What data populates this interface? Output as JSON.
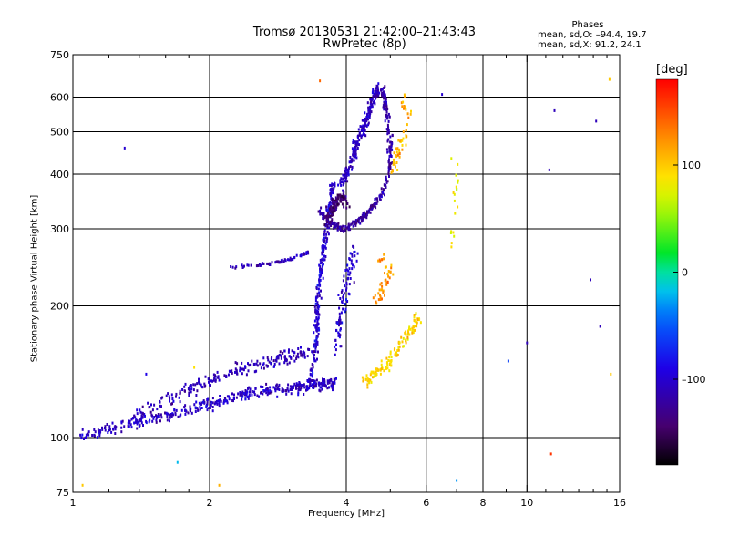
{
  "chart_data": {
    "type": "scatter",
    "title": "Tromsø 20130531 21:42:00–21:43:43",
    "subtitle": "RwPretec (8p)",
    "xlabel": "Frequency [MHz]",
    "ylabel": "Stationary phase Virtual Height [km]",
    "x_scale": "log",
    "y_scale": "log",
    "xlim": [
      1,
      16
    ],
    "ylim": [
      75,
      750
    ],
    "x_ticks": [
      1,
      2,
      4,
      6,
      8,
      10,
      16
    ],
    "x_tick_labels": [
      "1",
      "2",
      "4",
      "6",
      "8",
      "10",
      "16"
    ],
    "x_minor_ticks": [
      1.2,
      1.4,
      1.6,
      1.8,
      3,
      5,
      7,
      9,
      11,
      12,
      13,
      14,
      15
    ],
    "y_ticks": [
      75,
      100,
      200,
      300,
      400,
      500,
      600,
      750
    ],
    "y_tick_labels": [
      "75",
      "100",
      "200",
      "300",
      "400",
      "500",
      "600",
      "750"
    ],
    "grid": true,
    "grid_x": [
      2,
      4,
      6,
      8,
      10
    ],
    "grid_y": [
      100,
      200,
      300,
      400,
      500,
      600
    ],
    "stats_title": "Phases",
    "stats_line1": "mean, sd,O: –94.4, 19.7",
    "stats_line2": "mean, sd,X:  91.2, 24.1",
    "colorbar": {
      "unit": "[deg]",
      "range": [
        -180,
        180
      ],
      "ticks": [
        100,
        0,
        -100
      ],
      "tick_labels": [
        "100",
        "0",
        "–100"
      ]
    },
    "traces": [
      {
        "phase": -105,
        "pts": [
          [
            1.05,
            102
          ],
          [
            1.15,
            104
          ],
          [
            1.25,
            106
          ],
          [
            1.35,
            108
          ],
          [
            1.45,
            110
          ],
          [
            1.6,
            112
          ],
          [
            1.75,
            115
          ],
          [
            1.9,
            118
          ],
          [
            2.05,
            120
          ],
          [
            2.2,
            123
          ],
          [
            2.4,
            126
          ],
          [
            2.6,
            128
          ],
          [
            2.8,
            129
          ],
          [
            3.0,
            130
          ],
          [
            3.2,
            131
          ],
          [
            3.4,
            132
          ],
          [
            3.6,
            133
          ],
          [
            3.8,
            133
          ]
        ],
        "jitter": 0.045,
        "n": 420
      },
      {
        "phase": -110,
        "pts": [
          [
            1.35,
            112
          ],
          [
            1.5,
            118
          ],
          [
            1.7,
            125
          ],
          [
            1.9,
            132
          ],
          [
            2.1,
            138
          ],
          [
            2.3,
            143
          ],
          [
            2.5,
            146
          ],
          [
            2.7,
            150
          ],
          [
            2.9,
            153
          ],
          [
            3.1,
            155
          ],
          [
            3.3,
            158
          ]
        ],
        "jitter": 0.05,
        "n": 220
      },
      {
        "phase": -100,
        "pts": [
          [
            3.3,
            130
          ],
          [
            3.4,
            150
          ],
          [
            3.45,
            175
          ],
          [
            3.45,
            200
          ],
          [
            3.5,
            230
          ],
          [
            3.55,
            260
          ],
          [
            3.6,
            290
          ],
          [
            3.65,
            320
          ],
          [
            3.7,
            350
          ],
          [
            3.75,
            380
          ]
        ],
        "jitter": 0.035,
        "n": 260
      },
      {
        "phase": -120,
        "pts": [
          [
            3.5,
            330
          ],
          [
            3.7,
            310
          ],
          [
            3.9,
            300
          ],
          [
            4.1,
            305
          ],
          [
            4.3,
            315
          ],
          [
            4.5,
            330
          ],
          [
            4.7,
            350
          ],
          [
            4.9,
            380
          ],
          [
            5.0,
            420
          ],
          [
            5.0,
            470
          ],
          [
            4.95,
            520
          ],
          [
            4.9,
            560
          ],
          [
            4.85,
            600
          ],
          [
            4.8,
            630
          ]
        ],
        "jitter": 0.03,
        "n": 300
      },
      {
        "phase": -105,
        "pts": [
          [
            3.9,
            380
          ],
          [
            4.0,
            400
          ],
          [
            4.1,
            430
          ],
          [
            4.2,
            460
          ],
          [
            4.3,
            490
          ],
          [
            4.4,
            520
          ],
          [
            4.5,
            560
          ],
          [
            4.6,
            600
          ],
          [
            4.7,
            630
          ]
        ],
        "jitter": 0.04,
        "n": 220
      },
      {
        "phase": -140,
        "pts": [
          [
            3.6,
            310
          ],
          [
            3.7,
            330
          ],
          [
            3.8,
            345
          ],
          [
            3.9,
            360
          ],
          [
            4.0,
            340
          ]
        ],
        "jitter": 0.05,
        "n": 110
      },
      {
        "phase": -110,
        "pts": [
          [
            2.2,
            245
          ],
          [
            2.5,
            248
          ],
          [
            2.8,
            252
          ],
          [
            3.0,
            256
          ],
          [
            3.2,
            262
          ],
          [
            3.3,
            266
          ]
        ],
        "jitter": 0.012,
        "n": 70
      },
      {
        "phase": -100,
        "pts": [
          [
            3.8,
            160
          ],
          [
            3.9,
            190
          ],
          [
            4.0,
            220
          ],
          [
            4.1,
            250
          ],
          [
            4.2,
            270
          ]
        ],
        "jitter": 0.06,
        "n": 90
      },
      {
        "phase": 95,
        "pts": [
          [
            4.4,
            135
          ],
          [
            4.6,
            140
          ],
          [
            4.8,
            145
          ],
          [
            5.0,
            150
          ],
          [
            5.2,
            160
          ],
          [
            5.4,
            170
          ],
          [
            5.6,
            180
          ],
          [
            5.8,
            190
          ]
        ],
        "jitter": 0.05,
        "n": 130
      },
      {
        "phase": 120,
        "pts": [
          [
            4.6,
            200
          ],
          [
            4.8,
            220
          ],
          [
            5.0,
            240
          ],
          [
            4.7,
            260
          ]
        ],
        "jitter": 0.06,
        "n": 45
      },
      {
        "phase": 110,
        "pts": [
          [
            5.0,
            400
          ],
          [
            5.2,
            450
          ],
          [
            5.4,
            500
          ],
          [
            5.5,
            550
          ],
          [
            5.3,
            600
          ]
        ],
        "jitter": 0.05,
        "n": 55
      },
      {
        "phase": 80,
        "pts": [
          [
            6.8,
            270
          ],
          [
            6.9,
            320
          ],
          [
            7.0,
            380
          ],
          [
            6.9,
            450
          ]
        ],
        "jitter": 0.05,
        "n": 18
      }
    ],
    "scatter_points": [
      {
        "x": 1.3,
        "y": 460,
        "phase": -100
      },
      {
        "x": 1.45,
        "y": 140,
        "phase": -90
      },
      {
        "x": 1.85,
        "y": 145,
        "phase": 90
      },
      {
        "x": 1.7,
        "y": 88,
        "phase": -20
      },
      {
        "x": 2.1,
        "y": 78,
        "phase": 110
      },
      {
        "x": 3.5,
        "y": 655,
        "phase": 140
      },
      {
        "x": 6.5,
        "y": 610,
        "phase": -100
      },
      {
        "x": 7.0,
        "y": 80,
        "phase": -30
      },
      {
        "x": 10.0,
        "y": 165,
        "phase": -110
      },
      {
        "x": 11.2,
        "y": 410,
        "phase": -110
      },
      {
        "x": 11.5,
        "y": 560,
        "phase": -110
      },
      {
        "x": 13.8,
        "y": 230,
        "phase": -110
      },
      {
        "x": 14.2,
        "y": 530,
        "phase": -110
      },
      {
        "x": 14.5,
        "y": 180,
        "phase": -110
      },
      {
        "x": 15.2,
        "y": 660,
        "phase": 100
      },
      {
        "x": 15.3,
        "y": 140,
        "phase": 100
      },
      {
        "x": 9.1,
        "y": 150,
        "phase": -60
      },
      {
        "x": 11.3,
        "y": 92,
        "phase": 160
      },
      {
        "x": 1.05,
        "y": 78,
        "phase": 100
      }
    ]
  }
}
